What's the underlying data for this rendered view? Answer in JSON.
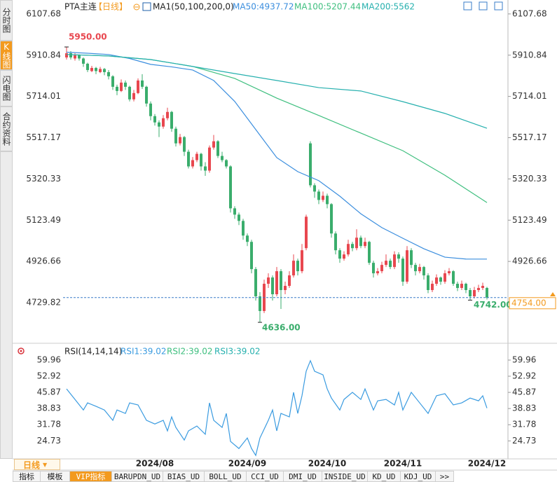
{
  "sidebar": [
    "分时图",
    "K线图",
    "闪电图",
    "合约资料"
  ],
  "period_button": "日线",
  "tabs": [
    "指标",
    "模板",
    "VIP指标",
    "BARUPDN_UD",
    "BIAS_UD",
    "BOLL_UD",
    "CCI_UD",
    "DMI_UD",
    "INSIDE_UD",
    "KD_UD",
    "KDJ_UD",
    ">>"
  ],
  "chart_data": [
    {
      "type": "candlestick",
      "title": "PTA主连",
      "period": "【日线】",
      "indicator": "MA1(50,100,200,0)",
      "up_color": "#e8474f",
      "down_color": "#3aad6c",
      "ylim": [
        4536,
        6134
      ],
      "yticks": [
        6107.68,
        5910.84,
        5714.01,
        5517.17,
        5320.33,
        5123.49,
        4926.66,
        4729.82
      ],
      "grid": false,
      "categories": [
        null,
        null,
        null,
        null,
        null,
        null,
        null,
        null,
        null,
        null,
        null,
        null,
        null,
        null,
        null,
        null,
        null,
        null,
        null,
        null,
        null,
        "2024/08",
        null,
        null,
        null,
        null,
        null,
        null,
        null,
        null,
        null,
        null,
        null,
        null,
        null,
        null,
        null,
        null,
        null,
        null,
        null,
        null,
        null,
        "2024/09",
        null,
        null,
        null,
        null,
        null,
        null,
        null,
        null,
        null,
        null,
        null,
        null,
        null,
        null,
        null,
        null,
        null,
        null,
        "2024/10",
        null,
        null,
        null,
        null,
        null,
        null,
        null,
        null,
        null,
        null,
        null,
        null,
        null,
        null,
        null,
        null,
        null,
        "2024/11",
        null,
        null,
        null,
        null,
        null,
        null,
        null,
        null,
        null,
        null,
        null,
        null,
        null,
        null,
        null,
        null,
        null,
        null,
        null,
        "2024/12"
      ],
      "ohlc": [
        [
          5900,
          5950,
          5890,
          5920
        ],
        [
          5920,
          5930,
          5890,
          5900
        ],
        [
          5895,
          5920,
          5885,
          5910
        ],
        [
          5910,
          5915,
          5885,
          5895
        ],
        [
          5895,
          5900,
          5855,
          5870
        ],
        [
          5870,
          5875,
          5830,
          5840
        ],
        [
          5835,
          5860,
          5830,
          5850
        ],
        [
          5850,
          5855,
          5820,
          5835
        ],
        [
          5830,
          5855,
          5825,
          5845
        ],
        [
          5845,
          5850,
          5815,
          5830
        ],
        [
          5830,
          5840,
          5795,
          5810
        ],
        [
          5810,
          5815,
          5745,
          5760
        ],
        [
          5760,
          5770,
          5720,
          5740
        ],
        [
          5740,
          5795,
          5735,
          5780
        ],
        [
          5780,
          5790,
          5745,
          5760
        ],
        [
          5760,
          5765,
          5690,
          5700
        ],
        [
          5700,
          5745,
          5690,
          5730
        ],
        [
          5730,
          5800,
          5725,
          5790
        ],
        [
          5790,
          5820,
          5750,
          5760
        ],
        [
          5760,
          5765,
          5665,
          5680
        ],
        [
          5680,
          5690,
          5600,
          5620
        ],
        [
          5620,
          5630,
          5575,
          5590
        ],
        [
          5590,
          5600,
          5520,
          5570
        ],
        [
          5570,
          5625,
          5560,
          5610
        ],
        [
          5610,
          5660,
          5600,
          5640
        ],
        [
          5640,
          5645,
          5545,
          5560
        ],
        [
          5560,
          5570,
          5475,
          5490
        ],
        [
          5490,
          5535,
          5480,
          5520
        ],
        [
          5520,
          5525,
          5430,
          5450
        ],
        [
          5450,
          5460,
          5370,
          5380
        ],
        [
          5380,
          5425,
          5370,
          5410
        ],
        [
          5410,
          5450,
          5400,
          5440
        ],
        [
          5440,
          5445,
          5360,
          5380
        ],
        [
          5380,
          5400,
          5335,
          5360
        ],
        [
          5360,
          5480,
          5350,
          5470
        ],
        [
          5470,
          5530,
          5460,
          5500
        ],
        [
          5500,
          5505,
          5420,
          5430
        ],
        [
          5430,
          5450,
          5400,
          5410
        ],
        [
          5410,
          5415,
          5370,
          5380
        ],
        [
          5380,
          5385,
          5160,
          5180
        ],
        [
          5180,
          5190,
          5130,
          5150
        ],
        [
          5150,
          5160,
          5100,
          5120
        ],
        [
          5120,
          5130,
          5030,
          5050
        ],
        [
          5050,
          5060,
          5000,
          5020
        ],
        [
          5020,
          5030,
          4870,
          4890
        ],
        [
          4890,
          4900,
          4740,
          4760
        ],
        [
          4760,
          4780,
          4636,
          4690
        ],
        [
          4690,
          4840,
          4680,
          4820
        ],
        [
          4820,
          4870,
          4800,
          4850
        ],
        [
          4850,
          4860,
          4740,
          4770
        ],
        [
          4770,
          4900,
          4760,
          4880
        ],
        [
          4880,
          4890,
          4700,
          4790
        ],
        [
          4790,
          4830,
          4770,
          4810
        ],
        [
          4810,
          4880,
          4800,
          4860
        ],
        [
          4860,
          4960,
          4850,
          4930
        ],
        [
          4930,
          4940,
          4860,
          4880
        ],
        [
          4880,
          5010,
          4870,
          4980
        ],
        [
          4990,
          5150,
          4980,
          5140
        ],
        [
          5490,
          5500,
          5280,
          5290
        ],
        [
          5290,
          5300,
          5230,
          5260
        ],
        [
          5260,
          5270,
          5200,
          5220
        ],
        [
          5220,
          5260,
          5210,
          5240
        ],
        [
          5240,
          5250,
          5180,
          5200
        ],
        [
          5200,
          5205,
          5040,
          5060
        ],
        [
          5060,
          5070,
          4960,
          4980
        ],
        [
          4980,
          4990,
          4920,
          4940
        ],
        [
          4940,
          4975,
          4930,
          4960
        ],
        [
          4960,
          5030,
          4950,
          5010
        ],
        [
          5010,
          5020,
          4975,
          4990
        ],
        [
          4990,
          5080,
          4980,
          5040
        ],
        [
          5040,
          5050,
          4990,
          5000
        ],
        [
          5000,
          5040,
          4990,
          5020
        ],
        [
          5020,
          5025,
          4910,
          4920
        ],
        [
          4920,
          4930,
          4850,
          4870
        ],
        [
          4870,
          4895,
          4860,
          4880
        ],
        [
          4880,
          4925,
          4870,
          4910
        ],
        [
          4910,
          4960,
          4900,
          4930
        ],
        [
          4930,
          4940,
          4890,
          4900
        ],
        [
          4900,
          4975,
          4890,
          4960
        ],
        [
          4960,
          4970,
          4920,
          4940
        ],
        [
          4940,
          4950,
          4810,
          4830
        ],
        [
          4830,
          5000,
          4820,
          4980
        ],
        [
          4980,
          4990,
          4895,
          4910
        ],
        [
          4910,
          4920,
          4860,
          4880
        ],
        [
          4880,
          4915,
          4870,
          4900
        ],
        [
          4900,
          4905,
          4840,
          4860
        ],
        [
          4860,
          4870,
          4775,
          4790
        ],
        [
          4790,
          4835,
          4780,
          4820
        ],
        [
          4820,
          4865,
          4810,
          4850
        ],
        [
          4850,
          4855,
          4815,
          4830
        ],
        [
          4830,
          4885,
          4820,
          4870
        ],
        [
          4870,
          4895,
          4860,
          4880
        ],
        [
          4880,
          4885,
          4810,
          4820
        ],
        [
          4820,
          4830,
          4785,
          4800
        ],
        [
          4800,
          4835,
          4790,
          4820
        ],
        [
          4820,
          4825,
          4775,
          4790
        ],
        [
          4790,
          4800,
          4742,
          4760
        ],
        [
          4760,
          4805,
          4750,
          4790
        ],
        [
          4790,
          4815,
          4780,
          4800
        ],
        [
          4800,
          4825,
          4790,
          4810
        ],
        [
          4800,
          4805,
          4745,
          4754
        ]
      ],
      "series": [
        {
          "name": "MA50:4937.72",
          "color": "#3b8ede",
          "x": [
            0,
            5,
            10,
            15,
            20,
            25,
            30,
            35,
            40,
            45,
            50,
            55,
            60,
            65,
            70,
            75,
            80,
            85,
            90,
            95,
            100
          ],
          "values": [
            5925,
            5920,
            5914,
            5895,
            5867,
            5855,
            5840,
            5790,
            5690,
            5556,
            5422,
            5355,
            5312,
            5238,
            5154,
            5088,
            5037,
            4987,
            4947,
            4938,
            4937.72
          ]
        },
        {
          "name": "MA100:5207.44",
          "color": "#3fbf7f",
          "x": [
            0,
            10,
            20,
            30,
            40,
            50,
            60,
            70,
            80,
            90,
            100
          ],
          "values": [
            5914,
            5907,
            5890,
            5857,
            5800,
            5706,
            5623,
            5539,
            5455,
            5338,
            5207.44
          ]
        },
        {
          "name": "MA200:5562",
          "color": "#26b0ae",
          "x": [
            0,
            10,
            20,
            30,
            40,
            50,
            60,
            70,
            80,
            90,
            100
          ],
          "values": [
            5914,
            5907,
            5890,
            5857,
            5823,
            5790,
            5756,
            5740,
            5689,
            5633,
            5562
          ]
        }
      ],
      "high_label": "5950.00",
      "low_label": "4636.00",
      "recent_low_label": "4742.00",
      "last_price_label": "4754.00"
    },
    {
      "type": "line",
      "title": "RSI(14,14,14)",
      "ylim": [
        17.8,
        62.7
      ],
      "yticks": [
        59.96,
        52.92,
        45.87,
        38.83,
        31.78,
        24.73
      ],
      "grid": false,
      "series": [
        {
          "name": "RSI1:39.02",
          "color": "#3a9be0",
          "x": [
            0,
            2,
            4,
            5,
            7,
            9,
            11,
            12,
            14,
            15,
            17,
            19,
            21,
            23,
            24,
            25,
            26,
            28,
            29,
            31,
            33,
            34,
            35,
            37,
            38,
            39,
            41,
            43,
            44,
            45,
            46,
            48,
            49,
            50,
            51,
            53,
            54,
            55,
            56,
            57,
            58,
            59,
            61,
            62,
            63,
            65,
            66,
            68,
            70,
            71,
            73,
            74,
            76,
            78,
            79,
            80,
            82,
            84,
            86,
            88,
            90,
            92,
            94,
            96,
            98,
            99,
            100
          ],
          "values": [
            47.4,
            42.8,
            38.2,
            41.3,
            39.8,
            38.2,
            33.7,
            38.2,
            36.7,
            41.3,
            40.4,
            33.7,
            32.1,
            33.7,
            29.1,
            35.2,
            30.6,
            25.1,
            29.1,
            31.2,
            27.6,
            41.3,
            33.7,
            30.6,
            36.7,
            24.5,
            21.4,
            26.0,
            21.4,
            18.4,
            26.0,
            33.7,
            38.2,
            29.1,
            36.7,
            35.2,
            45.9,
            36.7,
            44.4,
            55.1,
            59.7,
            55.1,
            53.5,
            47.4,
            43.4,
            38.2,
            42.8,
            45.9,
            42.8,
            47.4,
            38.2,
            42.2,
            42.8,
            40.4,
            45.9,
            38.2,
            45.9,
            41.3,
            36.7,
            44.4,
            45.3,
            40.4,
            41.3,
            43.4,
            42.2,
            44.4,
            39.02
          ]
        }
      ],
      "legend_extra": [
        {
          "name": "RSI2:39.02",
          "color": "#3fbf7f"
        },
        {
          "name": "RSI3:39.02",
          "color": "#26b0ae"
        }
      ]
    }
  ]
}
